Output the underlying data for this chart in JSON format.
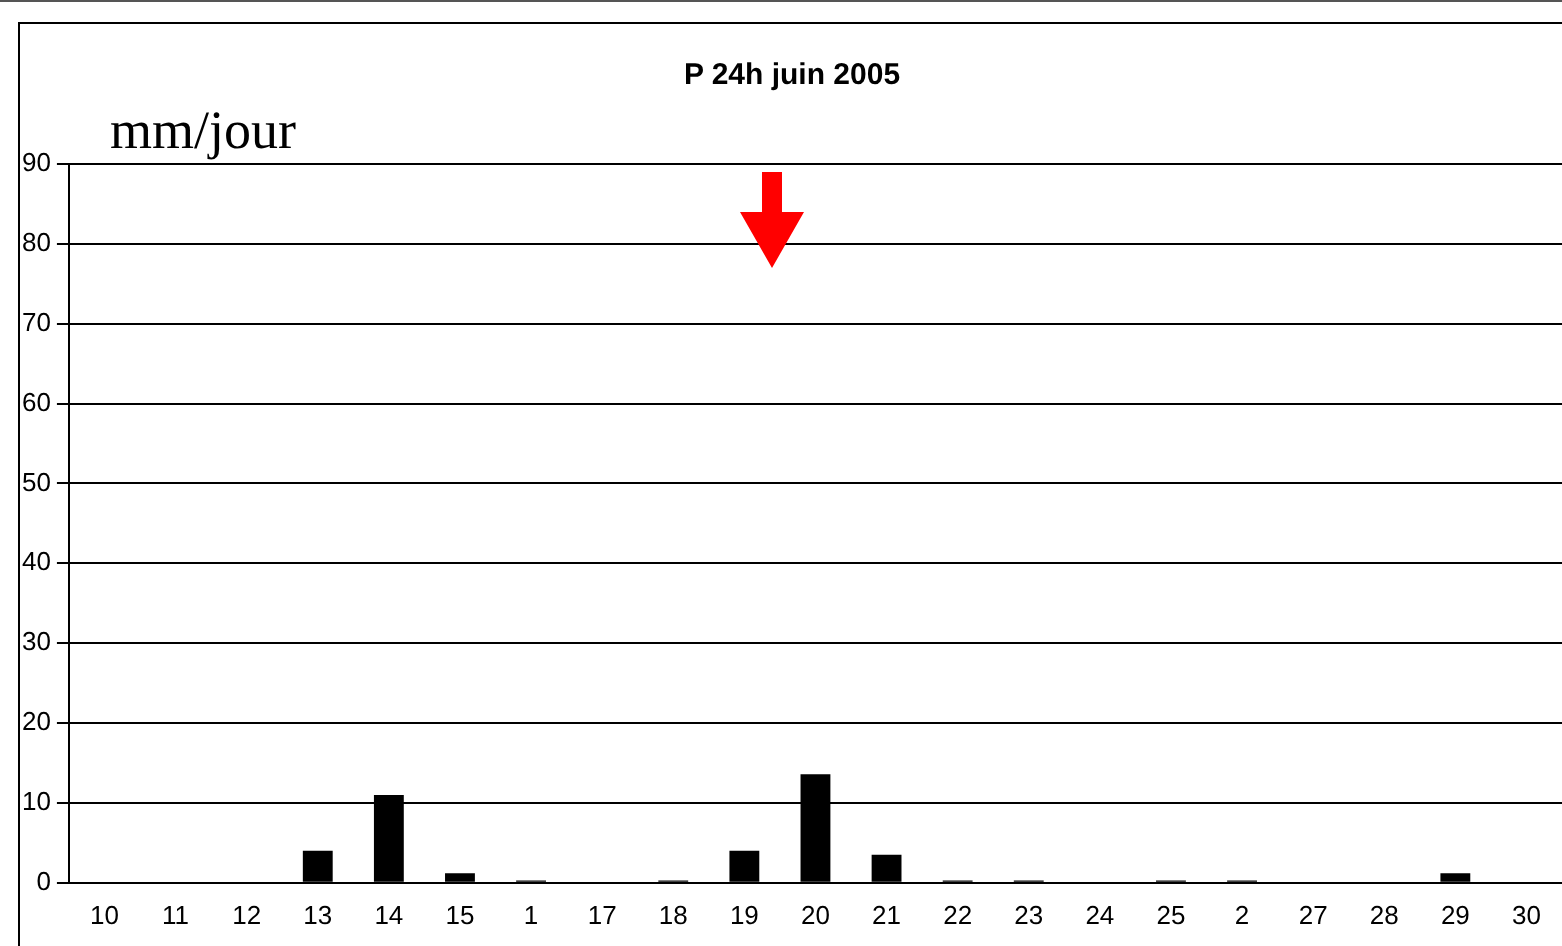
{
  "chart_data": {
    "type": "bar",
    "title": "P 24h juin 2005",
    "ylabel": "mm/jour",
    "categories": [
      "10",
      "11",
      "12",
      "13",
      "14",
      "15",
      "1",
      "17",
      "18",
      "19",
      "20",
      "21",
      "22",
      "23",
      "24",
      "25",
      "2",
      "27",
      "28",
      "29",
      "30"
    ],
    "values": [
      0,
      0,
      0,
      4,
      11,
      1.2,
      0.3,
      0,
      0.3,
      4,
      13.6,
      3.5,
      0.3,
      0.3,
      0,
      0.3,
      0.3,
      0,
      0,
      1.2,
      0
    ],
    "color": "#000000",
    "ylim": [
      0,
      90
    ],
    "yticks": [
      0,
      10,
      20,
      30,
      40,
      50,
      60,
      70,
      80,
      90
    ],
    "grid": "y",
    "legend": false
  }
}
